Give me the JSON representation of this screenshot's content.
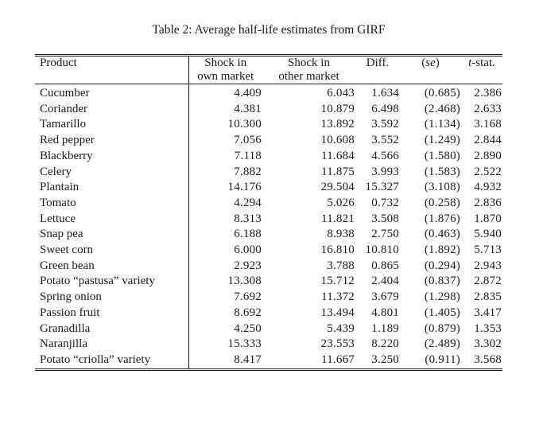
{
  "caption": "Table 2: Average half-life estimates from GIRF",
  "table": {
    "header": {
      "product": "Product",
      "own_line1": "Shock in",
      "own_line2": "own market",
      "other_line1": "Shock in",
      "other_line2": "other market",
      "diff": "Diff.",
      "se_open": "(",
      "se_inner": "se",
      "se_close": ")",
      "tstat_italic": "t",
      "tstat_rest": "-stat."
    },
    "rows": [
      {
        "product": "Cucumber",
        "own": "4.409",
        "other": "6.043",
        "diff": "1.634",
        "se": "(0.685)",
        "tstat": "2.386"
      },
      {
        "product": "Coriander",
        "own": "4.381",
        "other": "10.879",
        "diff": "6.498",
        "se": "(2.468)",
        "tstat": "2.633"
      },
      {
        "product": "Tamarillo",
        "own": "10.300",
        "other": "13.892",
        "diff": "3.592",
        "se": "(1.134)",
        "tstat": "3.168"
      },
      {
        "product": "Red pepper",
        "own": "7.056",
        "other": "10.608",
        "diff": "3.552",
        "se": "(1.249)",
        "tstat": "2.844"
      },
      {
        "product": "Blackberry",
        "own": "7.118",
        "other": "11.684",
        "diff": "4.566",
        "se": "(1.580)",
        "tstat": "2.890"
      },
      {
        "product": "Celery",
        "own": "7.882",
        "other": "11.875",
        "diff": "3.993",
        "se": "(1.583)",
        "tstat": "2.522"
      },
      {
        "product": "Plantain",
        "own": "14.176",
        "other": "29.504",
        "diff": "15.327",
        "se": "(3.108)",
        "tstat": "4.932"
      },
      {
        "product": "Tomato",
        "own": "4.294",
        "other": "5.026",
        "diff": "0.732",
        "se": "(0.258)",
        "tstat": "2.836"
      },
      {
        "product": "Lettuce",
        "own": "8.313",
        "other": "11.821",
        "diff": "3.508",
        "se": "(1.876)",
        "tstat": "1.870"
      },
      {
        "product": "Snap pea",
        "own": "6.188",
        "other": "8.938",
        "diff": "2.750",
        "se": "(0.463)",
        "tstat": "5.940"
      },
      {
        "product": "Sweet corn",
        "own": "6.000",
        "other": "16.810",
        "diff": "10.810",
        "se": "(1.892)",
        "tstat": "5.713"
      },
      {
        "product": "Green bean",
        "own": "2.923",
        "other": "3.788",
        "diff": "0.865",
        "se": "(0.294)",
        "tstat": "2.943"
      },
      {
        "product": "Potato “pastusa” variety",
        "own": "13.308",
        "other": "15.712",
        "diff": "2.404",
        "se": "(0.837)",
        "tstat": "2.872"
      },
      {
        "product": "Spring onion",
        "own": "7.692",
        "other": "11.372",
        "diff": "3.679",
        "se": "(1.298)",
        "tstat": "2.835"
      },
      {
        "product": "Passion fruit",
        "own": "8.692",
        "other": "13.494",
        "diff": "4.801",
        "se": "(1.405)",
        "tstat": "3.417"
      },
      {
        "product": "Granadilla",
        "own": "4.250",
        "other": "5.439",
        "diff": "1.189",
        "se": "(0.879)",
        "tstat": "1.353"
      },
      {
        "product": "Naranjilla",
        "own": "15.333",
        "other": "23.553",
        "diff": "8.220",
        "se": "(2.489)",
        "tstat": "3.302"
      },
      {
        "product": "Potato “criolla” variety",
        "own": "8.417",
        "other": "11.667",
        "diff": "3.250",
        "se": "(0.911)",
        "tstat": "3.568"
      }
    ]
  }
}
